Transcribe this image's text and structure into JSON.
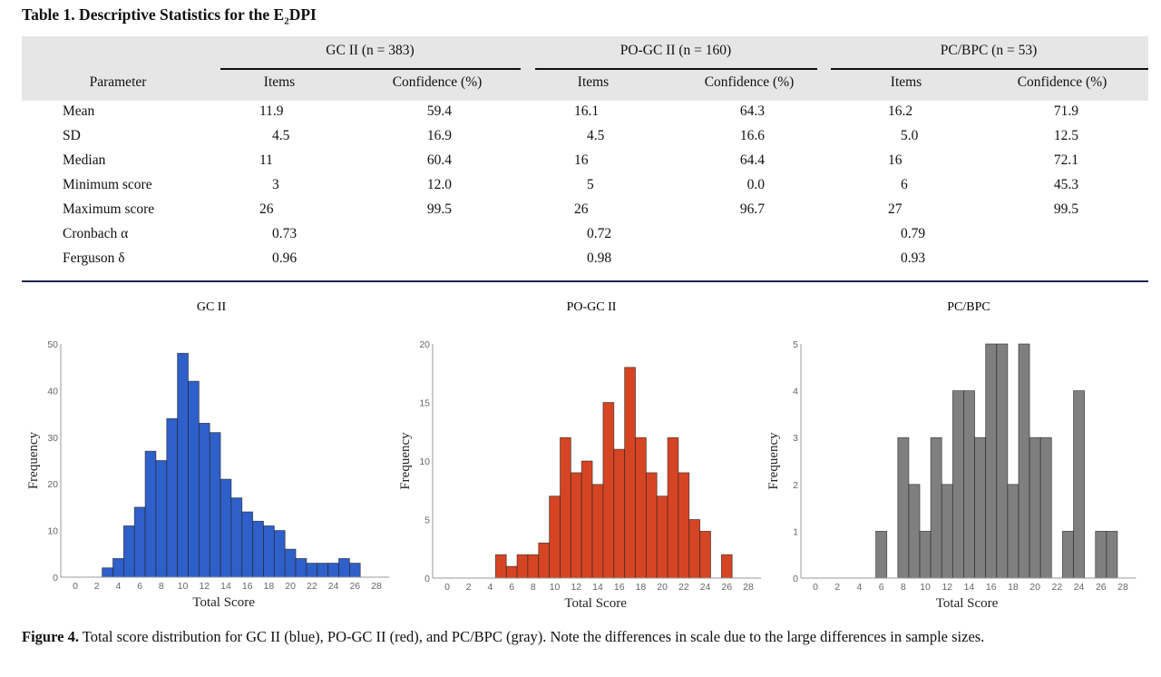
{
  "table": {
    "title_prefix": "Table 1. Descriptive Statistics for the E",
    "title_sub": "2",
    "title_suffix": "DPI",
    "groups": [
      "GC II (n = 383)",
      "PO-GC II (n = 160)",
      "PC/BPC (n = 53)"
    ],
    "param_header": "Parameter",
    "col_items": "Items",
    "col_conf": "Confidence (%)",
    "rows": [
      {
        "label": "Mean",
        "values": [
          "11.9",
          "59.4",
          "16.1",
          "64.3",
          "16.2",
          "71.9"
        ]
      },
      {
        "label": "SD",
        "values": [
          "4.5",
          "16.9",
          "4.5",
          "16.6",
          "5.0",
          "12.5"
        ]
      },
      {
        "label": "Median",
        "values": [
          "11",
          "60.4",
          "16",
          "64.4",
          "16",
          "72.1"
        ]
      },
      {
        "label": "Minimum score",
        "values": [
          "3",
          "12.0",
          "5",
          "0.0",
          "6",
          "45.3"
        ]
      },
      {
        "label": "Maximum score",
        "values": [
          "26",
          "99.5",
          "26",
          "96.7",
          "27",
          "99.5"
        ]
      },
      {
        "label": "Cronbach α",
        "values": [
          "0.73",
          "",
          "0.72",
          "",
          "0.79",
          ""
        ]
      },
      {
        "label": "Ferguson δ",
        "values": [
          "0.96",
          "",
          "0.98",
          "",
          "0.93",
          ""
        ]
      }
    ]
  },
  "chart_data": [
    {
      "type": "bar",
      "title": "GC II",
      "xlabel": "Total Score",
      "ylabel": "Frequency",
      "color": "#2f5fc8",
      "xticks": [
        0,
        2,
        4,
        6,
        8,
        10,
        12,
        14,
        16,
        18,
        20,
        22,
        24,
        26,
        28
      ],
      "yticks": [
        0,
        10,
        20,
        30,
        40,
        50
      ],
      "ylim": [
        0,
        50
      ],
      "xlim": [
        -1,
        29
      ],
      "x": [
        3,
        4,
        5,
        6,
        7,
        8,
        9,
        10,
        11,
        12,
        13,
        14,
        15,
        16,
        17,
        18,
        19,
        20,
        21,
        22,
        23,
        24,
        25,
        26
      ],
      "values": [
        2,
        4,
        11,
        15,
        27,
        25,
        34,
        48,
        42,
        33,
        31,
        21,
        17,
        14,
        12,
        11,
        10,
        6,
        4,
        3,
        3,
        3,
        4,
        3
      ]
    },
    {
      "type": "bar",
      "title": "PO-GC II",
      "xlabel": "Total Score",
      "ylabel": "Frequency",
      "color": "#d64523",
      "xticks": [
        0,
        2,
        4,
        6,
        8,
        10,
        12,
        14,
        16,
        18,
        20,
        22,
        24,
        26,
        28
      ],
      "yticks": [
        0,
        5,
        10,
        15,
        20
      ],
      "ylim": [
        0,
        20
      ],
      "xlim": [
        -1,
        29
      ],
      "x": [
        5,
        6,
        7,
        8,
        9,
        10,
        11,
        12,
        13,
        14,
        15,
        16,
        17,
        18,
        19,
        20,
        21,
        22,
        23,
        24,
        25,
        26
      ],
      "values": [
        2,
        1,
        2,
        2,
        3,
        7,
        12,
        9,
        10,
        8,
        15,
        11,
        18,
        12,
        9,
        7,
        12,
        9,
        5,
        4,
        0,
        2
      ]
    },
    {
      "type": "bar",
      "title": "PC/BPC",
      "xlabel": "Total Score",
      "ylabel": "Frequency",
      "color": "#7f7f7f",
      "xticks": [
        0,
        2,
        4,
        6,
        8,
        10,
        12,
        14,
        16,
        18,
        20,
        22,
        24,
        26,
        28
      ],
      "yticks": [
        0,
        1,
        2,
        3,
        4,
        5
      ],
      "ylim": [
        0,
        5
      ],
      "xlim": [
        -1,
        29
      ],
      "x": [
        6,
        7,
        8,
        9,
        10,
        11,
        12,
        13,
        14,
        15,
        16,
        17,
        18,
        19,
        20,
        21,
        22,
        23,
        24,
        25,
        26,
        27
      ],
      "values": [
        1,
        0,
        3,
        2,
        1,
        3,
        2,
        4,
        4,
        3,
        5,
        5,
        2,
        5,
        3,
        3,
        0,
        1,
        4,
        0,
        1,
        1
      ]
    }
  ],
  "caption": {
    "label": "Figure 4.",
    "text": " Total score distribution for GC II (blue), PO-GC II (red), and PC/BPC (gray). Note the differences in scale due to the large differences in sample sizes."
  }
}
